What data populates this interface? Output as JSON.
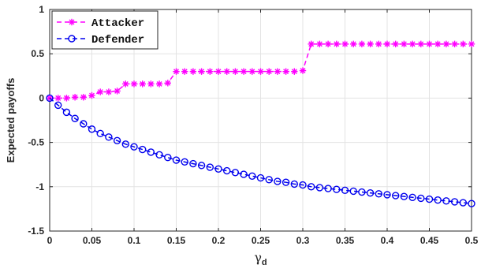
{
  "chart_data": {
    "type": "line",
    "xlabel_symbol": "γ",
    "xlabel_subscript": "d",
    "ylabel": "Expected payoffs",
    "xlim": [
      0,
      0.5
    ],
    "ylim": [
      -1.5,
      1
    ],
    "xticks": [
      "0",
      "0.05",
      "0.1",
      "0.15",
      "0.2",
      "0.25",
      "0.3",
      "0.35",
      "0.4",
      "0.45",
      "0.5"
    ],
    "xtick_values": [
      0,
      0.05,
      0.1,
      0.15,
      0.2,
      0.25,
      0.3,
      0.35,
      0.4,
      0.45,
      0.5
    ],
    "yticks": [
      "1",
      "0.5",
      "0",
      "-0.5",
      "-1",
      "-1.5"
    ],
    "ytick_values": [
      1,
      0.5,
      0,
      -0.5,
      -1,
      -1.5
    ],
    "grid": true,
    "legend_position": "top-left",
    "series": [
      {
        "name": "Attacker",
        "color": "#ff00ff",
        "marker": "asterisk",
        "line": "dashed",
        "x": [
          0,
          0.01,
          0.02,
          0.03,
          0.04,
          0.05,
          0.06,
          0.07,
          0.08,
          0.09,
          0.1,
          0.11,
          0.12,
          0.13,
          0.14,
          0.15,
          0.16,
          0.17,
          0.18,
          0.19,
          0.2,
          0.21,
          0.22,
          0.23,
          0.24,
          0.25,
          0.26,
          0.27,
          0.28,
          0.29,
          0.3,
          0.31,
          0.32,
          0.33,
          0.34,
          0.35,
          0.36,
          0.37,
          0.38,
          0.39,
          0.4,
          0.41,
          0.42,
          0.43,
          0.44,
          0.45,
          0.46,
          0.47,
          0.48,
          0.49,
          0.5
        ],
        "y": [
          0,
          0,
          0,
          0.01,
          0.01,
          0.03,
          0.07,
          0.07,
          0.08,
          0.16,
          0.16,
          0.16,
          0.16,
          0.16,
          0.17,
          0.3,
          0.3,
          0.3,
          0.3,
          0.3,
          0.3,
          0.3,
          0.3,
          0.3,
          0.3,
          0.3,
          0.3,
          0.3,
          0.3,
          0.3,
          0.31,
          0.61,
          0.61,
          0.61,
          0.61,
          0.61,
          0.61,
          0.61,
          0.61,
          0.61,
          0.61,
          0.61,
          0.61,
          0.61,
          0.61,
          0.61,
          0.61,
          0.61,
          0.61,
          0.61,
          0.61
        ]
      },
      {
        "name": "Defender",
        "color": "#0000ee",
        "marker": "circle",
        "line": "dashed",
        "x": [
          0,
          0.01,
          0.02,
          0.03,
          0.04,
          0.05,
          0.06,
          0.07,
          0.08,
          0.09,
          0.1,
          0.11,
          0.12,
          0.13,
          0.14,
          0.15,
          0.16,
          0.17,
          0.18,
          0.19,
          0.2,
          0.21,
          0.22,
          0.23,
          0.24,
          0.25,
          0.26,
          0.27,
          0.28,
          0.29,
          0.3,
          0.31,
          0.32,
          0.33,
          0.34,
          0.35,
          0.36,
          0.37,
          0.38,
          0.39,
          0.4,
          0.41,
          0.42,
          0.43,
          0.44,
          0.45,
          0.46,
          0.47,
          0.48,
          0.49,
          0.5
        ],
        "y": [
          0,
          -0.08,
          -0.16,
          -0.23,
          -0.29,
          -0.35,
          -0.4,
          -0.44,
          -0.48,
          -0.52,
          -0.55,
          -0.58,
          -0.61,
          -0.64,
          -0.67,
          -0.7,
          -0.72,
          -0.74,
          -0.76,
          -0.78,
          -0.8,
          -0.82,
          -0.84,
          -0.86,
          -0.88,
          -0.9,
          -0.92,
          -0.94,
          -0.95,
          -0.97,
          -0.98,
          -1.0,
          -1.01,
          -1.02,
          -1.03,
          -1.04,
          -1.05,
          -1.06,
          -1.07,
          -1.08,
          -1.09,
          -1.1,
          -1.11,
          -1.12,
          -1.13,
          -1.14,
          -1.15,
          -1.16,
          -1.17,
          -1.18,
          -1.19
        ]
      }
    ]
  }
}
